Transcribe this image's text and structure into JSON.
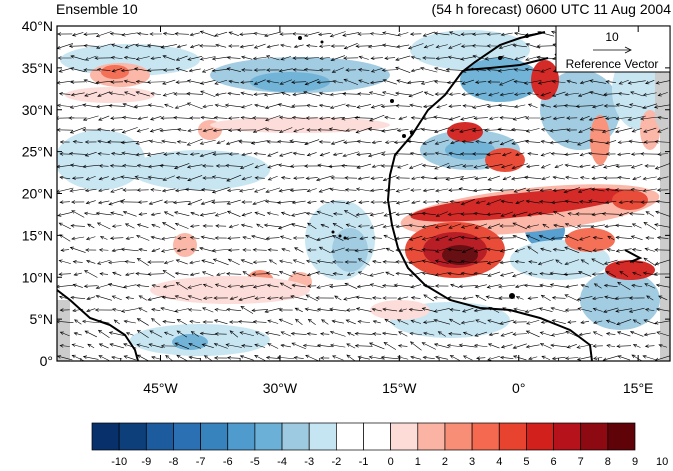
{
  "header": {
    "title_left": "Ensemble 10",
    "title_right": "(54 h forecast) 0600 UTC 11 Aug 2004"
  },
  "map": {
    "lat_labels": [
      "40°N",
      "35°N",
      "30°N",
      "25°N",
      "20°N",
      "15°N",
      "10°N",
      "5°N",
      "0°"
    ],
    "lon_labels": [
      "45°W",
      "30°W",
      "15°W",
      "0°",
      "15°E"
    ],
    "extent": {
      "lon_min": -58,
      "lon_max": 19,
      "lat_min": 0,
      "lat_max": 40
    }
  },
  "reference_vector": {
    "magnitude": "10",
    "label": "Reference Vector"
  },
  "colorbar": {
    "labels": [
      "-10",
      "-9",
      "-8",
      "-7",
      "-6",
      "-5",
      "-4",
      "-3",
      "-2",
      "-1",
      "0",
      "1",
      "2",
      "3",
      "4",
      "5",
      "6",
      "7",
      "8",
      "9",
      "10"
    ],
    "colors": [
      "#08306b",
      "#0d3f7a",
      "#1b5b9e",
      "#2a70b2",
      "#3683be",
      "#4f9bcd",
      "#6bb0d6",
      "#9ecae1",
      "#c6e5f2",
      "#ffffff",
      "#ffffff",
      "#fddcd7",
      "#fbb4a4",
      "#f98e76",
      "#f4694f",
      "#e8432f",
      "#d2201d",
      "#b5121b",
      "#8e0a12",
      "#600308"
    ]
  }
}
